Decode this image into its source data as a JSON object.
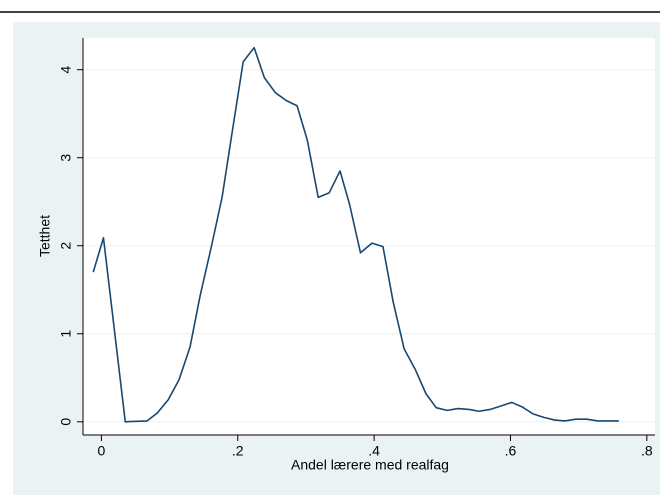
{
  "chart_data": {
    "type": "line",
    "x_label": "Andel lærere med realfag",
    "y_label": "Tetthet",
    "color": "#1a476f",
    "x": [
      -0.012,
      0.003,
      0.035,
      0.067,
      0.082,
      0.098,
      0.114,
      0.13,
      0.145,
      0.161,
      0.177,
      0.192,
      0.208,
      0.224,
      0.239,
      0.255,
      0.271,
      0.287,
      0.302,
      0.318,
      0.334,
      0.35,
      0.364,
      0.38,
      0.397,
      0.413,
      0.428,
      0.444,
      0.46,
      0.476,
      0.491,
      0.507,
      0.523,
      0.539,
      0.554,
      0.57,
      0.586,
      0.602,
      0.617,
      0.633,
      0.649,
      0.665,
      0.68,
      0.696,
      0.712,
      0.728,
      0.743,
      0.759
    ],
    "values": [
      1.7,
      2.09,
      0.0,
      0.01,
      0.1,
      0.25,
      0.48,
      0.85,
      1.44,
      1.98,
      2.55,
      3.3,
      4.09,
      4.25,
      3.91,
      3.74,
      3.65,
      3.59,
      3.2,
      2.55,
      2.6,
      2.85,
      2.47,
      1.92,
      2.03,
      1.99,
      1.36,
      0.83,
      0.6,
      0.32,
      0.16,
      0.13,
      0.15,
      0.14,
      0.12,
      0.14,
      0.18,
      0.22,
      0.17,
      0.09,
      0.05,
      0.02,
      0.01,
      0.03,
      0.03,
      0.01,
      0.01,
      0.01
    ],
    "xlim": [
      -0.027,
      0.812
    ],
    "ylim": [
      -0.15,
      4.36
    ],
    "xticks": [
      0,
      {
        "value": 0.2,
        "label": ".2"
      },
      {
        "value": 0.4,
        "label": ".4"
      },
      {
        "value": 0.6,
        "label": ".6"
      },
      {
        "value": 0.8,
        "label": ".8"
      }
    ],
    "yticks": [
      0,
      1,
      2,
      3,
      4
    ],
    "grid": true
  }
}
